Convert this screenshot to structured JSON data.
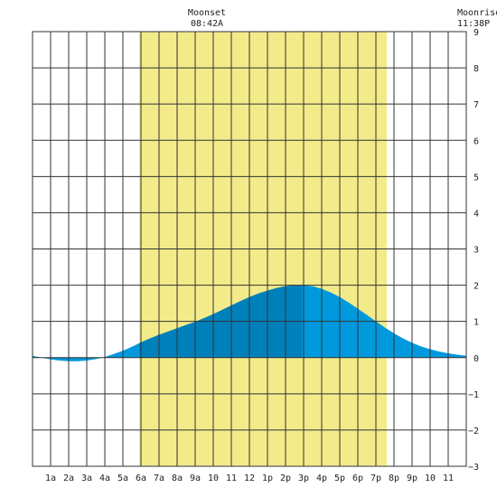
{
  "annotations": {
    "moonset": {
      "label": "Moonset",
      "time": "08:42A"
    },
    "moonrise": {
      "label": "Moonrise",
      "time": "11:38P"
    }
  },
  "colors": {
    "daylight": "#f3eb8a",
    "tide_light": "#0099dd",
    "tide_dark": "#0080bb",
    "grid": "#333333",
    "frame": "#333333"
  },
  "chart_data": {
    "type": "area",
    "title": "",
    "xlabel": "",
    "ylabel": "",
    "x_unit": "hour of day",
    "xlim": [
      0,
      24
    ],
    "ylim": [
      -3,
      9
    ],
    "x_tick_labels": [
      "1a",
      "2a",
      "3a",
      "4a",
      "5a",
      "6a",
      "7a",
      "8a",
      "9a",
      "10",
      "11",
      "12",
      "1p",
      "2p",
      "3p",
      "4p",
      "5p",
      "6p",
      "7p",
      "8p",
      "9p",
      "10",
      "11"
    ],
    "y_ticks": [
      -3,
      -2,
      -1,
      0,
      1,
      2,
      3,
      4,
      5,
      6,
      7,
      8,
      9
    ],
    "daylight": {
      "start_hour": 5.9,
      "end_hour": 19.6
    },
    "highlight_segment": {
      "start_hour": 5.9,
      "end_hour": 14.9
    },
    "series": [
      {
        "x": [
          0,
          0.5,
          1,
          1.5,
          2,
          2.5,
          3,
          3.5,
          4,
          4.5,
          5,
          5.5,
          6,
          6.5,
          7,
          7.5,
          8,
          8.5,
          9,
          9.5,
          10,
          10.5,
          11,
          11.5,
          12,
          12.5,
          13,
          13.5,
          14,
          14.5,
          15,
          15.5,
          16,
          16.5,
          17,
          17.5,
          18,
          18.5,
          19,
          19.5,
          20,
          20.5,
          21,
          21.5,
          22,
          22.5,
          23,
          23.5,
          24
        ],
        "y": [
          0.05,
          0.0,
          -0.05,
          -0.08,
          -0.1,
          -0.1,
          -0.08,
          -0.04,
          0.02,
          0.1,
          0.19,
          0.3,
          0.42,
          0.53,
          0.63,
          0.72,
          0.81,
          0.9,
          0.99,
          1.09,
          1.2,
          1.32,
          1.44,
          1.56,
          1.67,
          1.77,
          1.85,
          1.92,
          1.97,
          2.0,
          2.0,
          1.97,
          1.9,
          1.8,
          1.67,
          1.52,
          1.35,
          1.18,
          1.0,
          0.83,
          0.67,
          0.53,
          0.41,
          0.31,
          0.23,
          0.17,
          0.12,
          0.08,
          0.05
        ]
      }
    ],
    "grid": true
  }
}
